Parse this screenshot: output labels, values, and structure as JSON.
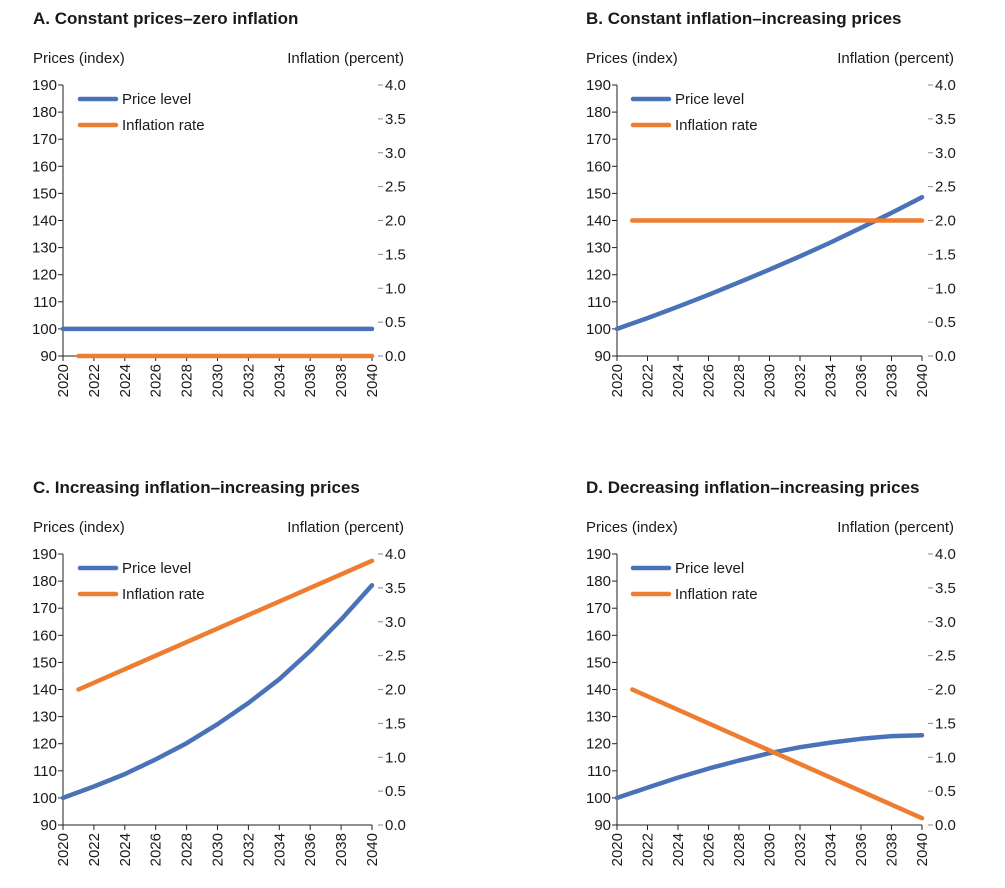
{
  "colors": {
    "price": "#4a72b8",
    "inflation": "#ed7d31",
    "axis": "#222222",
    "gridtick": "#888888"
  },
  "chart_data": [
    {
      "id": "A",
      "type": "line",
      "title": "A. Constant prices–zero inflation",
      "ylabel_left": "Prices (index)",
      "ylabel_right": "Inflation (percent)",
      "ylim_left": [
        90,
        190
      ],
      "ylim_right": [
        0.0,
        4.0
      ],
      "left_ticks": [
        "90",
        "100",
        "110",
        "120",
        "130",
        "140",
        "150",
        "160",
        "170",
        "180",
        "190"
      ],
      "right_ticks": [
        "0.0",
        "0.5",
        "1.0",
        "1.5",
        "2.0",
        "2.5",
        "3.0",
        "3.5",
        "4.0"
      ],
      "x_ticks": [
        "2020",
        "2022",
        "2024",
        "2026",
        "2028",
        "2030",
        "2032",
        "2034",
        "2036",
        "2038",
        "2040"
      ],
      "legend": [
        "Price level",
        "Inflation rate"
      ],
      "series": [
        {
          "name": "Price level",
          "axis": "left",
          "x": [
            2020,
            2040
          ],
          "values": [
            100,
            100
          ]
        },
        {
          "name": "Inflation rate",
          "axis": "right",
          "x": [
            2021,
            2040
          ],
          "values": [
            0.0,
            0.0
          ]
        }
      ]
    },
    {
      "id": "B",
      "type": "line",
      "title": "B. Constant inflation–increasing prices",
      "ylabel_left": "Prices (index)",
      "ylabel_right": "Inflation (percent)",
      "ylim_left": [
        90,
        190
      ],
      "ylim_right": [
        0.0,
        4.0
      ],
      "left_ticks": [
        "90",
        "100",
        "110",
        "120",
        "130",
        "140",
        "150",
        "160",
        "170",
        "180",
        "190"
      ],
      "right_ticks": [
        "0.0",
        "0.5",
        "1.0",
        "1.5",
        "2.0",
        "2.5",
        "3.0",
        "3.5",
        "4.0"
      ],
      "x_ticks": [
        "2020",
        "2022",
        "2024",
        "2026",
        "2028",
        "2030",
        "2032",
        "2034",
        "2036",
        "2038",
        "2040"
      ],
      "legend": [
        "Price level",
        "Inflation rate"
      ],
      "series": [
        {
          "name": "Price level",
          "axis": "left",
          "x": [
            2020,
            2022,
            2024,
            2026,
            2028,
            2030,
            2032,
            2034,
            2036,
            2038,
            2040
          ],
          "values": [
            100,
            104.0,
            108.2,
            112.6,
            117.2,
            121.9,
            126.8,
            131.9,
            137.3,
            142.8,
            148.6
          ]
        },
        {
          "name": "Inflation rate",
          "axis": "right",
          "x": [
            2021,
            2040
          ],
          "values": [
            2.0,
            2.0
          ]
        }
      ]
    },
    {
      "id": "C",
      "type": "line",
      "title": "C. Increasing inflation–increasing prices",
      "ylabel_left": "Prices (index)",
      "ylabel_right": "Inflation (percent)",
      "ylim_left": [
        90,
        190
      ],
      "ylim_right": [
        0.0,
        4.0
      ],
      "left_ticks": [
        "90",
        "100",
        "110",
        "120",
        "130",
        "140",
        "150",
        "160",
        "170",
        "180",
        "190"
      ],
      "right_ticks": [
        "0.0",
        "0.5",
        "1.0",
        "1.5",
        "2.0",
        "2.5",
        "3.0",
        "3.5",
        "4.0"
      ],
      "x_ticks": [
        "2020",
        "2022",
        "2024",
        "2026",
        "2028",
        "2030",
        "2032",
        "2034",
        "2036",
        "2038",
        "2040"
      ],
      "legend": [
        "Price level",
        "Inflation rate"
      ],
      "series": [
        {
          "name": "Price level",
          "axis": "left",
          "x": [
            2020,
            2022,
            2024,
            2026,
            2028,
            2030,
            2032,
            2034,
            2036,
            2038,
            2040
          ],
          "values": [
            100,
            104.2,
            108.8,
            114.2,
            120.2,
            127.2,
            135.0,
            143.8,
            154.2,
            165.8,
            178.5
          ]
        },
        {
          "name": "Inflation rate",
          "axis": "right",
          "x": [
            2021,
            2040
          ],
          "values": [
            2.0,
            3.9
          ]
        }
      ]
    },
    {
      "id": "D",
      "type": "line",
      "title": "D. Decreasing inflation–increasing prices",
      "ylabel_left": "Prices (index)",
      "ylabel_right": "Inflation (percent)",
      "ylim_left": [
        90,
        190
      ],
      "ylim_right": [
        0.0,
        4.0
      ],
      "left_ticks": [
        "90",
        "100",
        "110",
        "120",
        "130",
        "140",
        "150",
        "160",
        "170",
        "180",
        "190"
      ],
      "right_ticks": [
        "0.0",
        "0.5",
        "1.0",
        "1.5",
        "2.0",
        "2.5",
        "3.0",
        "3.5",
        "4.0"
      ],
      "x_ticks": [
        "2020",
        "2022",
        "2024",
        "2026",
        "2028",
        "2030",
        "2032",
        "2034",
        "2036",
        "2038",
        "2040"
      ],
      "legend": [
        "Price level",
        "Inflation rate"
      ],
      "series": [
        {
          "name": "Price level",
          "axis": "left",
          "x": [
            2020,
            2022,
            2024,
            2026,
            2028,
            2030,
            2032,
            2034,
            2036,
            2038,
            2040
          ],
          "values": [
            100,
            103.8,
            107.5,
            110.8,
            113.8,
            116.5,
            118.7,
            120.4,
            121.8,
            122.8,
            123.1
          ]
        },
        {
          "name": "Inflation rate",
          "axis": "right",
          "x": [
            2021,
            2040
          ],
          "values": [
            2.0,
            0.1
          ]
        }
      ]
    }
  ]
}
